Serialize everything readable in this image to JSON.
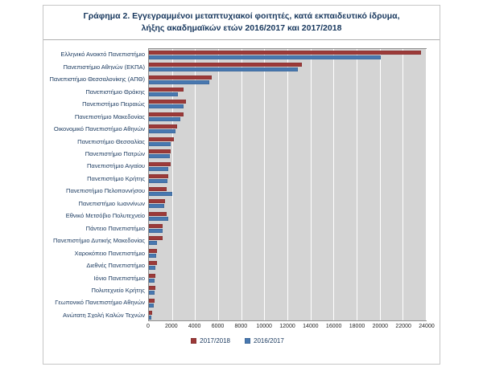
{
  "title": {
    "line1": "Γράφημα 2. Εγγεγραμμένοι μεταπτυχιακοί φοιτητές, κατά εκπαιδευτικό ίδρυμα,",
    "line2": "λήξης ακαδημαϊκών ετών 2016/2017 και 2017/2018"
  },
  "chart_data": {
    "type": "bar",
    "orientation": "horizontal",
    "title": "Γράφημα 2. Εγγεγραμμένοι μεταπτυχιακοί φοιτητές, κατά εκπαιδευτικό ίδρυμα, λήξης ακαδημαϊκών ετών 2016/2017 και 2017/2018",
    "categories": [
      "Ελληνικό Ανοικτό Πανεπιστήμιο",
      "Πανεπιστήμιο Αθηνών (ΕΚΠΑ)",
      "Πανεπιστήμιο Θεσσαλονίκης (ΑΠΘ)",
      "Πανεπιστήμιο Θράκης",
      "Πανεπιστήμιο Πειραιώς",
      "Πανεπιστήμιο Μακεδονίας",
      "Οικονομικό Πανεπιστήμιο Αθηνών",
      "Πανεπιστήμιο Θεσσαλίας",
      "Πανεπιστήμιο Πατρών",
      "Πανεπιστήμιο Αιγαίου",
      "Πανεπιστήμιο Κρήτης",
      "Πανεπιστήμιο Πελοποννήσου",
      "Πανεπιστήμιο Ιωαννίνων",
      "Εθνικό Μετσόβιο Πολυτεχνείο",
      "Πάντειο Πανεπιστήμιο",
      "Πανεπιστήμιο Δυτικής Μακεδονίας",
      "Χαροκόπειο Πανεπιστήμιο",
      "Διεθνές Πανεπιστήμιο",
      "Ιόνιο Πανεπιστήμιο",
      "Πολυτεχνείο Κρήτης",
      "Γεωπονικό Πανεπιστήμιο Αθηνών",
      "Ανώτατη Σχολή Καλών Τεχνών"
    ],
    "series": [
      {
        "name": "2017/2018",
        "color": "#9c3a39",
        "values": [
          23500,
          13200,
          5400,
          3000,
          3200,
          3000,
          2400,
          2150,
          1900,
          1900,
          1700,
          1500,
          1400,
          1500,
          1200,
          1150,
          700,
          700,
          570,
          570,
          500,
          280
        ]
      },
      {
        "name": "2016/2017",
        "color": "#4878b0",
        "values": [
          20000,
          12900,
          5200,
          2500,
          3000,
          2700,
          2300,
          1900,
          1800,
          1700,
          1600,
          2000,
          1300,
          1650,
          1150,
          700,
          650,
          570,
          500,
          520,
          430,
          200
        ]
      }
    ],
    "xlim": [
      0,
      24000
    ],
    "x_ticks": [
      0,
      2000,
      4000,
      6000,
      8000,
      10000,
      12000,
      14000,
      16000,
      18000,
      20000,
      22000,
      24000
    ],
    "grid": "vertical-white-gridlines",
    "plot_bg": "#d4d4d4",
    "legend_position": "bottom"
  }
}
